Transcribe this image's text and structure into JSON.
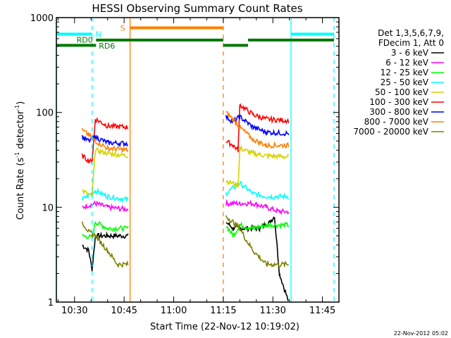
{
  "chart_data": {
    "type": "line",
    "title": "HESSI Observing Summary Count Rates",
    "xlabel": "Start Time (22-Nov-12 10:19:02)",
    "ylabel": "Count Rate (s⁻¹ detector⁻¹)",
    "ylabel_parts": {
      "main": "Count Rate (s",
      "sup1": "-1",
      "mid": " detector",
      "sup2": "-1",
      "end": ")"
    },
    "yscale": "log",
    "ylim": [
      1,
      1000
    ],
    "xlim_minutes": [
      24.5,
      59.5
    ],
    "x_axis_base": "10:00",
    "x_tick_labels": [
      "10:30",
      "10:45",
      "11:00",
      "11:15",
      "11:30",
      "11:45"
    ],
    "x_tick_minutes": [
      30,
      45,
      60,
      75,
      90,
      105
    ],
    "y_tick_labels": [
      "1",
      "10",
      "100",
      "1000"
    ],
    "y_tick_values": [
      1,
      10,
      100,
      1000
    ],
    "legend": {
      "header": [
        "Det 1,3,5,6,7,9,",
        "FDecim 1, Att 0"
      ],
      "placement": "right",
      "entries": [
        {
          "label": "3 - 6 keV",
          "color": "#000000"
        },
        {
          "label": "6 - 12 keV",
          "color": "#ff00ff"
        },
        {
          "label": "12 - 25 keV",
          "color": "#00ff00"
        },
        {
          "label": "25 - 50 keV",
          "color": "#00ffff"
        },
        {
          "label": "50 - 100 keV",
          "color": "#d4d400"
        },
        {
          "label": "100 - 300 keV",
          "color": "#ff0000"
        },
        {
          "label": "300 - 800 keV",
          "color": "#0000ff"
        },
        {
          "label": "800 - 7000 keV",
          "color": "#ff8000"
        },
        {
          "label": "7000 - 20000 keV",
          "color": "#808000"
        }
      ]
    },
    "intervals": [
      {
        "start_min": 32.3,
        "end_min": 46.3
      },
      {
        "start_min": 75.8,
        "end_min": 94.8
      }
    ],
    "series": [
      {
        "name": "3 - 6 keV",
        "color": "#000000",
        "seg1": [
          [
            32.3,
            4
          ],
          [
            34.3,
            3.5
          ],
          [
            35.3,
            2.2
          ],
          [
            36.3,
            5
          ],
          [
            40,
            5
          ],
          [
            46.2,
            5
          ]
        ],
        "seg2": [
          [
            75.8,
            7
          ],
          [
            78,
            6
          ],
          [
            82,
            6
          ],
          [
            86,
            6
          ],
          [
            89,
            7
          ],
          [
            90.5,
            8
          ],
          [
            92,
            2
          ],
          [
            94.8,
            1
          ]
        ]
      },
      {
        "name": "6 - 12 keV",
        "color": "#ff00ff",
        "seg1": [
          [
            32.3,
            10
          ],
          [
            36.3,
            11
          ],
          [
            40,
            10
          ],
          [
            46.2,
            9.5
          ]
        ],
        "seg2": [
          [
            75.8,
            11
          ],
          [
            80,
            11
          ],
          [
            84,
            11
          ],
          [
            88,
            10
          ],
          [
            92,
            9
          ],
          [
            94.8,
            9
          ]
        ]
      },
      {
        "name": "12 - 25 keV",
        "color": "#00ff00",
        "seg1": [
          [
            32.3,
            5
          ],
          [
            35.3,
            4.8
          ],
          [
            36.3,
            7
          ],
          [
            40,
            6
          ],
          [
            46.2,
            6
          ]
        ],
        "seg2": [
          [
            75.8,
            6.5
          ],
          [
            78,
            5
          ],
          [
            80,
            6.5
          ],
          [
            84,
            6
          ],
          [
            88,
            6.5
          ],
          [
            94.8,
            6.5
          ]
        ]
      },
      {
        "name": "25 - 50 keV",
        "color": "#00ffff",
        "seg1": [
          [
            32.3,
            12
          ],
          [
            36.3,
            15
          ],
          [
            40,
            13
          ],
          [
            46.2,
            12
          ]
        ],
        "seg2": [
          [
            75.8,
            14
          ],
          [
            80,
            18
          ],
          [
            84,
            14
          ],
          [
            88,
            13
          ],
          [
            94.8,
            13
          ]
        ]
      },
      {
        "name": "50 - 100 keV",
        "color": "#d4d400",
        "seg1": [
          [
            32.3,
            15
          ],
          [
            35.3,
            13
          ],
          [
            36.3,
            40
          ],
          [
            40,
            37
          ],
          [
            46.2,
            35
          ]
        ],
        "seg2": [
          [
            75.8,
            19
          ],
          [
            79.5,
            17
          ],
          [
            80,
            42
          ],
          [
            84,
            37
          ],
          [
            88,
            35
          ],
          [
            94.8,
            34
          ]
        ]
      },
      {
        "name": "100 - 300 keV",
        "color": "#ff0000",
        "seg1": [
          [
            32.3,
            35
          ],
          [
            34.3,
            31
          ],
          [
            35.3,
            30
          ],
          [
            36.3,
            85
          ],
          [
            40,
            72
          ],
          [
            46.2,
            70
          ]
        ],
        "seg2": [
          [
            75.8,
            50
          ],
          [
            78,
            45
          ],
          [
            79.5,
            40
          ],
          [
            80,
            120
          ],
          [
            84,
            95
          ],
          [
            88,
            85
          ],
          [
            94.8,
            82
          ]
        ]
      },
      {
        "name": "300 - 800 keV",
        "color": "#0000ff",
        "seg1": [
          [
            32.3,
            55
          ],
          [
            34.3,
            50
          ],
          [
            36.3,
            55
          ],
          [
            40,
            48
          ],
          [
            46.2,
            47
          ]
        ],
        "seg2": [
          [
            75.8,
            90
          ],
          [
            78,
            80
          ],
          [
            80,
            90
          ],
          [
            84,
            70
          ],
          [
            88,
            62
          ],
          [
            94.8,
            60
          ]
        ]
      },
      {
        "name": "800 - 7000 keV",
        "color": "#ff8000",
        "seg1": [
          [
            32.3,
            65
          ],
          [
            34.3,
            58
          ],
          [
            36.3,
            50
          ],
          [
            40,
            42
          ],
          [
            46.2,
            40
          ]
        ],
        "seg2": [
          [
            75.8,
            100
          ],
          [
            78,
            85
          ],
          [
            80,
            70
          ],
          [
            84,
            52
          ],
          [
            88,
            45
          ],
          [
            94.8,
            45
          ]
        ]
      },
      {
        "name": "7000 - 20000 keV",
        "color": "#808000",
        "seg1": [
          [
            32.3,
            7
          ],
          [
            34.3,
            5.5
          ],
          [
            36.3,
            5
          ],
          [
            40,
            3.5
          ],
          [
            43,
            2.5
          ],
          [
            46.2,
            2.5
          ]
        ],
        "seg2": [
          [
            75.8,
            8
          ],
          [
            78,
            7
          ],
          [
            80,
            6
          ],
          [
            82,
            4.5
          ],
          [
            84,
            3.5
          ],
          [
            88,
            2.5
          ],
          [
            94.8,
            2.5
          ]
        ]
      }
    ],
    "flag_bars": [
      {
        "label": "N",
        "color": "#00ffff",
        "y": 670,
        "segments": [
          [
            24.5,
            35.3
          ],
          [
            95.5,
            108.5
          ]
        ]
      },
      {
        "label": "RD0",
        "color": "#007700",
        "y": 510,
        "segments": [
          [
            24.5,
            36.5
          ]
        ]
      },
      {
        "label": "RD6",
        "color": "#007700",
        "y": 580,
        "segments": [
          [
            36.5,
            75
          ],
          [
            82.5,
            108.5
          ]
        ]
      },
      {
        "label": "",
        "color": "#007700",
        "y": 510,
        "segments": [
          [
            75,
            82.5
          ]
        ]
      },
      {
        "label": "S",
        "color": "#ff8000",
        "y": 780,
        "segments": [
          [
            46.8,
            75
          ]
        ]
      }
    ],
    "vertical_markers": [
      {
        "minute": 24.5,
        "color": "#00ffff",
        "style": "solid"
      },
      {
        "minute": 35.3,
        "color": "#00ffff",
        "style": "dashed"
      },
      {
        "minute": 46.8,
        "color": "#ff8000",
        "style": "solid"
      },
      {
        "minute": 75,
        "color": "#ff8000",
        "style": "dashed"
      },
      {
        "minute": 95.5,
        "color": "#00ffff",
        "style": "solid"
      },
      {
        "minute": 108.5,
        "color": "#00ffff",
        "style": "dashed"
      }
    ]
  },
  "footer": {
    "timestamp": "22-Nov-2012 05:02"
  }
}
